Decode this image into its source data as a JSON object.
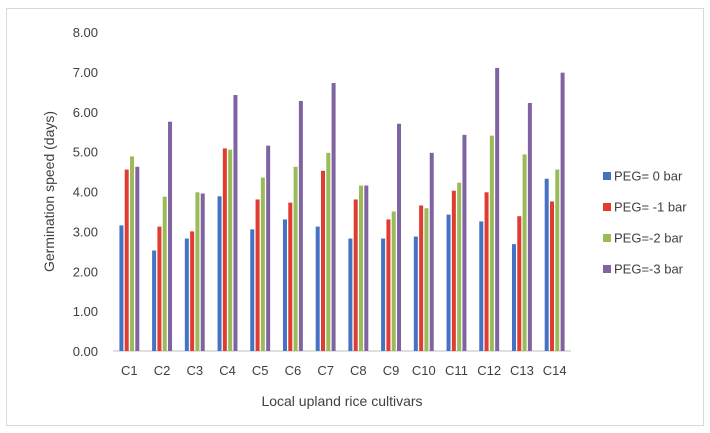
{
  "chart_data": {
    "type": "bar",
    "xlabel": "Local upland rice cultivars",
    "ylabel": "Germination speed  (days)",
    "ylim": [
      0,
      8
    ],
    "yticks": [
      "0.00",
      "1.00",
      "2.00",
      "3.00",
      "4.00",
      "5.00",
      "6.00",
      "7.00",
      "8.00"
    ],
    "grid": false,
    "legend_position": "right",
    "categories": [
      "C1",
      "C2",
      "C3",
      "C4",
      "C5",
      "C6",
      "C7",
      "C8",
      "C9",
      "C10",
      "C11",
      "C12",
      "C13",
      "C14"
    ],
    "series": [
      {
        "name": "PEG= 0 bar",
        "color": "#4472c4",
        "values": [
          3.15,
          2.52,
          2.82,
          3.88,
          3.05,
          3.3,
          3.12,
          2.82,
          2.82,
          2.87,
          3.42,
          3.25,
          2.68,
          4.32
        ]
      },
      {
        "name": "PEG= -1 bar",
        "color": "#e03c31",
        "values": [
          4.55,
          3.12,
          3.0,
          5.08,
          3.8,
          3.72,
          4.52,
          3.8,
          3.3,
          3.65,
          4.02,
          3.98,
          3.38,
          3.75
        ]
      },
      {
        "name": "PEG=-2 bar",
        "color": "#9bbb59",
        "values": [
          4.88,
          3.87,
          3.98,
          5.05,
          4.35,
          4.62,
          4.97,
          4.15,
          3.5,
          3.58,
          4.22,
          5.4,
          4.93,
          4.55
        ]
      },
      {
        "name": "PEG=-3 bar",
        "color": "#8064a2",
        "values": [
          4.62,
          5.75,
          3.95,
          6.42,
          5.15,
          6.27,
          6.72,
          4.15,
          5.7,
          4.97,
          5.42,
          7.1,
          6.22,
          6.98
        ]
      }
    ]
  }
}
